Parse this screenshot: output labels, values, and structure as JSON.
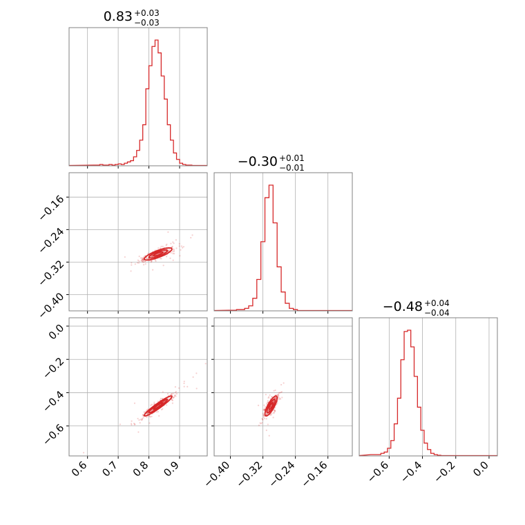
{
  "chart_data": {
    "type": "corner",
    "colors": {
      "main": "#d62728",
      "grid": "#b0b0b0",
      "frame": "#808080"
    },
    "grid": true,
    "parameters": [
      {
        "median": "0.83",
        "plus": "+0.03",
        "minus": "−0.03",
        "range": [
          0.54,
          0.99
        ],
        "ticks": [
          0.6,
          0.7,
          0.8,
          0.9
        ],
        "tick_labels": [
          "0.6",
          "0.7",
          "0.8",
          "0.9"
        ]
      },
      {
        "median": "−0.30",
        "plus": "+0.01",
        "minus": "−0.01",
        "range": [
          -0.44,
          -0.1
        ],
        "ticks": [
          -0.4,
          -0.32,
          -0.24,
          -0.16
        ],
        "tick_labels": [
          "−0.40",
          "−0.32",
          "−0.24",
          "−0.16"
        ]
      },
      {
        "median": "−0.48",
        "plus": "+0.04",
        "minus": "−0.04",
        "range": [
          -0.78,
          0.05
        ],
        "ticks": [
          -0.6,
          -0.4,
          -0.2,
          0.0
        ],
        "tick_labels": [
          "−0.6",
          "−0.4",
          "−0.2",
          "0.0"
        ]
      }
    ],
    "histograms": [
      {
        "param": 0,
        "x": [
          0.625,
          0.635,
          0.645,
          0.655,
          0.665,
          0.675,
          0.685,
          0.695,
          0.705,
          0.715,
          0.725,
          0.735,
          0.745,
          0.755,
          0.765,
          0.775,
          0.785,
          0.795,
          0.805,
          0.815,
          0.825,
          0.835,
          0.845,
          0.855,
          0.865,
          0.875,
          0.885,
          0.895,
          0.905,
          0.915,
          0.925,
          0.935
        ],
        "y": [
          0.005,
          0.005,
          0.01,
          0.005,
          0.005,
          0.01,
          0.005,
          0.01,
          0.015,
          0.01,
          0.02,
          0.03,
          0.04,
          0.07,
          0.12,
          0.2,
          0.32,
          0.6,
          0.78,
          0.93,
          0.98,
          0.88,
          0.7,
          0.52,
          0.32,
          0.2,
          0.1,
          0.05,
          0.02,
          0.01,
          0.005,
          0.005
        ]
      },
      {
        "param": 1,
        "x": [
          -0.4,
          -0.39,
          -0.38,
          -0.37,
          -0.36,
          -0.35,
          -0.34,
          -0.33,
          -0.32,
          -0.31,
          -0.3,
          -0.29,
          -0.28,
          -0.27,
          -0.26,
          -0.25,
          -0.24
        ],
        "y": [
          0.005,
          0.005,
          0.01,
          0.01,
          0.02,
          0.04,
          0.1,
          0.25,
          0.55,
          0.9,
          1.0,
          0.7,
          0.35,
          0.15,
          0.06,
          0.02,
          0.01
        ]
      },
      {
        "param": 2,
        "x": [
          -0.7,
          -0.68,
          -0.66,
          -0.64,
          -0.62,
          -0.6,
          -0.58,
          -0.56,
          -0.54,
          -0.52,
          -0.5,
          -0.48,
          -0.46,
          -0.44,
          -0.42,
          -0.4,
          -0.38,
          -0.36,
          -0.34,
          -0.32,
          -0.3
        ],
        "y": [
          0.01,
          0.01,
          0.01,
          0.02,
          0.03,
          0.06,
          0.12,
          0.25,
          0.45,
          0.75,
          0.97,
          0.98,
          0.85,
          0.62,
          0.38,
          0.2,
          0.1,
          0.05,
          0.02,
          0.01,
          0.005
        ]
      }
    ],
    "scatter_panels": [
      {
        "x_param": 0,
        "y_param": 1,
        "center": [
          0.83,
          -0.3
        ],
        "cov": [
          [
            0.0009,
            0.00024
          ],
          [
            0.00024,
            0.0001
          ]
        ],
        "contour_levels": [
          0.5,
          1.0,
          1.5
        ]
      },
      {
        "x_param": 0,
        "y_param": 2,
        "center": [
          0.83,
          -0.48
        ],
        "cov": [
          [
            0.0009,
            0.00114
          ],
          [
            0.00114,
            0.0016
          ]
        ],
        "contour_levels": [
          0.5,
          1.0,
          1.5
        ]
      },
      {
        "x_param": 1,
        "y_param": 2,
        "center": [
          -0.3,
          -0.48
        ],
        "cov": [
          [
            0.0001,
            0.00032
          ],
          [
            0.00032,
            0.0016
          ]
        ],
        "contour_levels": [
          0.5,
          1.0,
          1.5
        ]
      }
    ]
  }
}
